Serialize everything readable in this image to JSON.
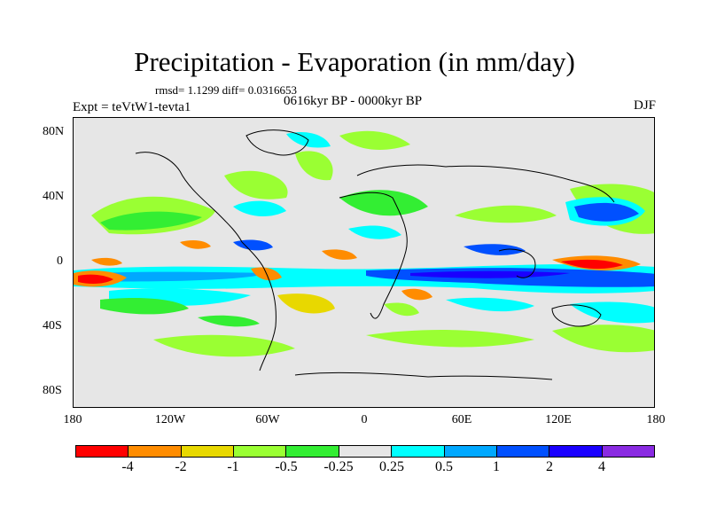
{
  "header": {
    "title": "Precipitation - Evaporation (in mm/day)",
    "stats": "rmsd= 1.1299 diff= 0.0316653",
    "period": "0616kyr BP - 0000kyr BP",
    "experiment": "Expt = teVtW1-tevta1",
    "season": "DJF"
  },
  "map": {
    "latitude_ticks": [
      "80N",
      "40N",
      "0",
      "40S",
      "80S"
    ],
    "longitude_ticks": [
      "180",
      "120W",
      "60W",
      "0",
      "60E",
      "120E",
      "180"
    ],
    "background_color": "#e6e6e6"
  },
  "colorbar": {
    "levels": [
      "-4",
      "-2",
      "-1",
      "-0.5",
      "-0.25",
      "0.25",
      "0.5",
      "1",
      "2",
      "4"
    ],
    "colors": [
      "#ff0000",
      "#ff8c00",
      "#e8d800",
      "#9aff33",
      "#33ee33",
      "#e6e6e6",
      "#00ffff",
      "#00a8ff",
      "#0050ff",
      "#1a00ff",
      "#8a2be2"
    ]
  }
}
